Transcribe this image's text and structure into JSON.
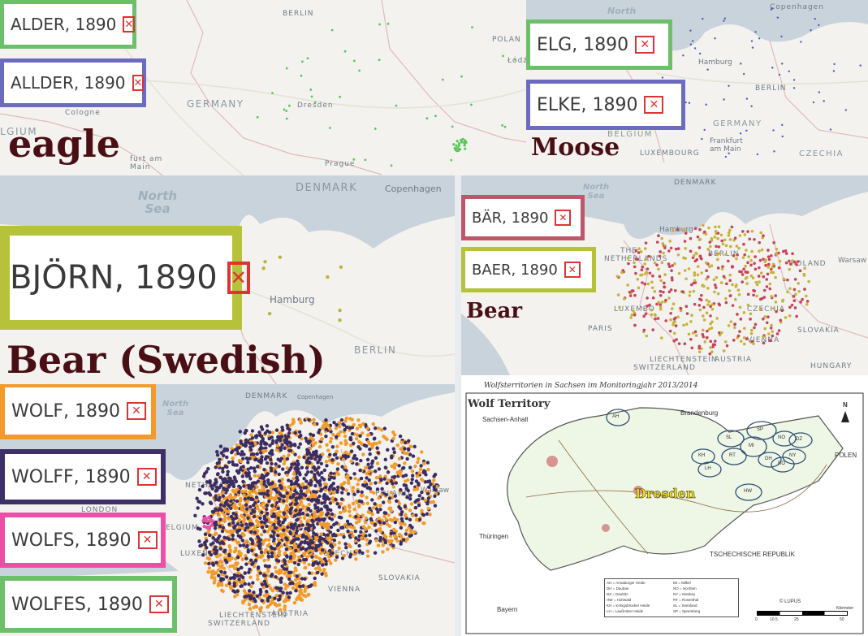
{
  "panels": {
    "eagle": {
      "animal": "eagle",
      "places": {
        "berlin": "BERLIN",
        "poland": "POLAN",
        "lodz": "Łódź",
        "germany": "GERMANY",
        "dresden": "Dresden",
        "cologne": "Cologne",
        "belgium": "LGIUM",
        "frankfurt": "furt am\nMain",
        "prague": "Prague"
      },
      "tags": [
        {
          "text": "ALDER, 1890",
          "color": "#6cc06a"
        },
        {
          "text": "ALLDER, 1890",
          "color": "#6b6bc0"
        }
      ],
      "dot_color": "#56c85a"
    },
    "moose": {
      "animal": "Moose",
      "places": {
        "north": "North",
        "copenhagen": "Copenhagen",
        "hamburg": "Hamburg",
        "berlin": "BERLIN",
        "germany": "GERMANY",
        "belgium": "BELGIUM",
        "luxembourg": "LUXEMBOURG",
        "frankfurt": "Frankfurt\nam Main",
        "czechia": "CZECHIA"
      },
      "tags": [
        {
          "text": "ELG, 1890",
          "color": "#6cc06a"
        },
        {
          "text": "ELKE, 1890",
          "color": "#6b6bc0"
        }
      ],
      "dot_color": "#4d5bbf"
    },
    "bjorn": {
      "animal": "Bear (Swedish)",
      "places": {
        "north_sea": "North\nSea",
        "denmark": "DENMARK",
        "copenhagen": "Copenhagen",
        "hamburg": "Hamburg",
        "berlin": "BERLIN"
      },
      "tags": [
        {
          "text": "BJÖRN, 1890",
          "color": "#b5c23a"
        }
      ],
      "dot_color": "#b5b83a"
    },
    "bear": {
      "animal": "Bear",
      "places": {
        "north_sea": "North\nSea",
        "denmark": "DENMARK",
        "hamburg": "Hamburg",
        "berlin": "BERLIN",
        "poland": "POLAND",
        "warsaw": "Warsaw",
        "netherlands": "NETHERLANDS",
        "the": "THE",
        "luxembourg": "LUXEMBO",
        "paris": "PARIS",
        "czechia": "CZECHIA",
        "vienna": "VIENNA",
        "slovakia": "SLOVAKIA",
        "liechtenstein": "LIECHTENSTEIN",
        "austria": "AUSTRIA",
        "switzerland": "SWITZERLAND",
        "hungary": "HUNGARY"
      },
      "tags": [
        {
          "text": "BÄR, 1890",
          "color": "#c0566a"
        },
        {
          "text": "BAER, 1890",
          "color": "#b5c23a"
        }
      ],
      "dot_colors": [
        "#c8435a",
        "#c7b33a"
      ]
    },
    "wolf": {
      "places": {
        "denmark": "DENMARK",
        "copenhagen": "Copenhagen",
        "north_sea": "North\nSea",
        "netherlands": "NETHERLAN",
        "london": "LONDON",
        "belgium": "ELGIUM",
        "luxem": "LUXEN",
        "poland": "POLAND",
        "warsaw": "Warsaw",
        "czechia": "CZECHIA",
        "vienna": "VIENNA",
        "slovakia": "SLOVAKIA",
        "austria": "AUSTRIA",
        "liechtenstein": "LIECHTENSTEIN",
        "switzerland": "SWITZERLAND"
      },
      "tags": [
        {
          "text": "WOLF, 1890",
          "color": "#f39a2a"
        },
        {
          "text": "WOLFF, 1890",
          "color": "#3e2f66"
        },
        {
          "text": "WOLFS, 1890",
          "color": "#ee4fa6"
        },
        {
          "text": "WOLFES, 1890",
          "color": "#6cc06a"
        }
      ],
      "dot_colors": [
        "#3a2d63",
        "#f39a2a"
      ]
    },
    "saxony": {
      "top_title": "Wolfsterritorien in Sachsen im Monitoringjahr 2013/2014",
      "title": "Wolf Territory",
      "city": "Dresden",
      "regions": {
        "sachsen_anhalt": "Sachsen-Anhalt",
        "brandenburg": "Brandenburg",
        "polen": "POLEN",
        "thuringen": "Thüringen",
        "tschechische": "TSCHECHISCHE REPUBLIK",
        "bayern": "Bayern"
      },
      "territories": [
        "AH",
        "SP",
        "SL",
        "NO",
        "DZ",
        "MI",
        "RT",
        "NY",
        "KH",
        "LH",
        "DH",
        "RO",
        "HW"
      ],
      "north": "N",
      "copyright": "© LUPUS",
      "scale": [
        "0",
        "10.5",
        "25",
        "50"
      ],
      "scale_unit": "Kilometer",
      "legend": [
        "AH = Annaburger Heide",
        "DH = Dauban",
        "DZ = Daubitz",
        "HW = Hohwald",
        "KH = Königsbrücker Heide",
        "LH = Laußnitzer Heide",
        "MI = Milkel",
        "NO = Nochten",
        "NY = Nieskey",
        "RT = Rosenthal",
        "SL = Seenland",
        "SP = Spremberg"
      ]
    }
  }
}
